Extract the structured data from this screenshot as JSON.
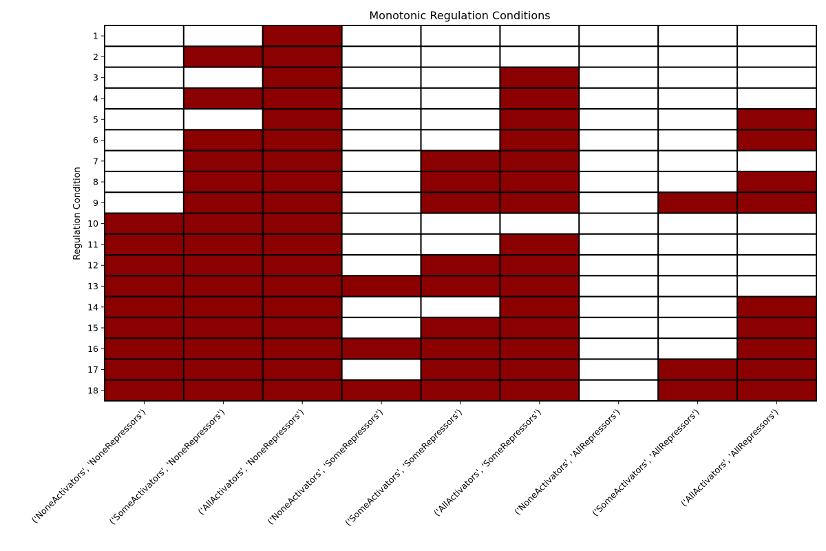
{
  "chart_data": {
    "type": "heatmap",
    "title": "Monotonic Regulation Conditions",
    "ylabel": "Regulation Condition",
    "xlabel": "",
    "colors": {
      "on": "#8b0000",
      "off": "#ffffff",
      "border": "#000000"
    },
    "x_categories": [
      "('NoneActivators', 'NoneRepressors')",
      "('SomeActivators', 'NoneRepressors')",
      "('AllActivators', 'NoneRepressors')",
      "('NoneActivators', 'SomeRepressors')",
      "('SomeActivators', 'SomeRepressors')",
      "('AllActivators', 'SomeRepressors')",
      "('NoneActivators', 'AllRepressors')",
      "('SomeActivators', 'AllRepressors')",
      "('AllActivators', 'AllRepressors')"
    ],
    "y_categories": [
      "1",
      "2",
      "3",
      "4",
      "5",
      "6",
      "7",
      "8",
      "9",
      "10",
      "11",
      "12",
      "13",
      "14",
      "15",
      "16",
      "17",
      "18"
    ],
    "values": [
      [
        0,
        0,
        1,
        0,
        0,
        0,
        0,
        0,
        0
      ],
      [
        0,
        1,
        1,
        0,
        0,
        0,
        0,
        0,
        0
      ],
      [
        0,
        0,
        1,
        0,
        0,
        1,
        0,
        0,
        0
      ],
      [
        0,
        1,
        1,
        0,
        0,
        1,
        0,
        0,
        0
      ],
      [
        0,
        0,
        1,
        0,
        0,
        1,
        0,
        0,
        1
      ],
      [
        0,
        1,
        1,
        0,
        0,
        1,
        0,
        0,
        1
      ],
      [
        0,
        1,
        1,
        0,
        1,
        1,
        0,
        0,
        0
      ],
      [
        0,
        1,
        1,
        0,
        1,
        1,
        0,
        0,
        1
      ],
      [
        0,
        1,
        1,
        0,
        1,
        1,
        0,
        1,
        1
      ],
      [
        1,
        1,
        1,
        0,
        0,
        0,
        0,
        0,
        0
      ],
      [
        1,
        1,
        1,
        0,
        0,
        1,
        0,
        0,
        0
      ],
      [
        1,
        1,
        1,
        0,
        1,
        1,
        0,
        0,
        0
      ],
      [
        1,
        1,
        1,
        1,
        1,
        1,
        0,
        0,
        0
      ],
      [
        1,
        1,
        1,
        0,
        0,
        1,
        0,
        0,
        1
      ],
      [
        1,
        1,
        1,
        0,
        1,
        1,
        0,
        0,
        1
      ],
      [
        1,
        1,
        1,
        1,
        1,
        1,
        0,
        0,
        1
      ],
      [
        1,
        1,
        1,
        0,
        1,
        1,
        0,
        1,
        1
      ],
      [
        1,
        1,
        1,
        1,
        1,
        1,
        0,
        1,
        1
      ]
    ]
  }
}
